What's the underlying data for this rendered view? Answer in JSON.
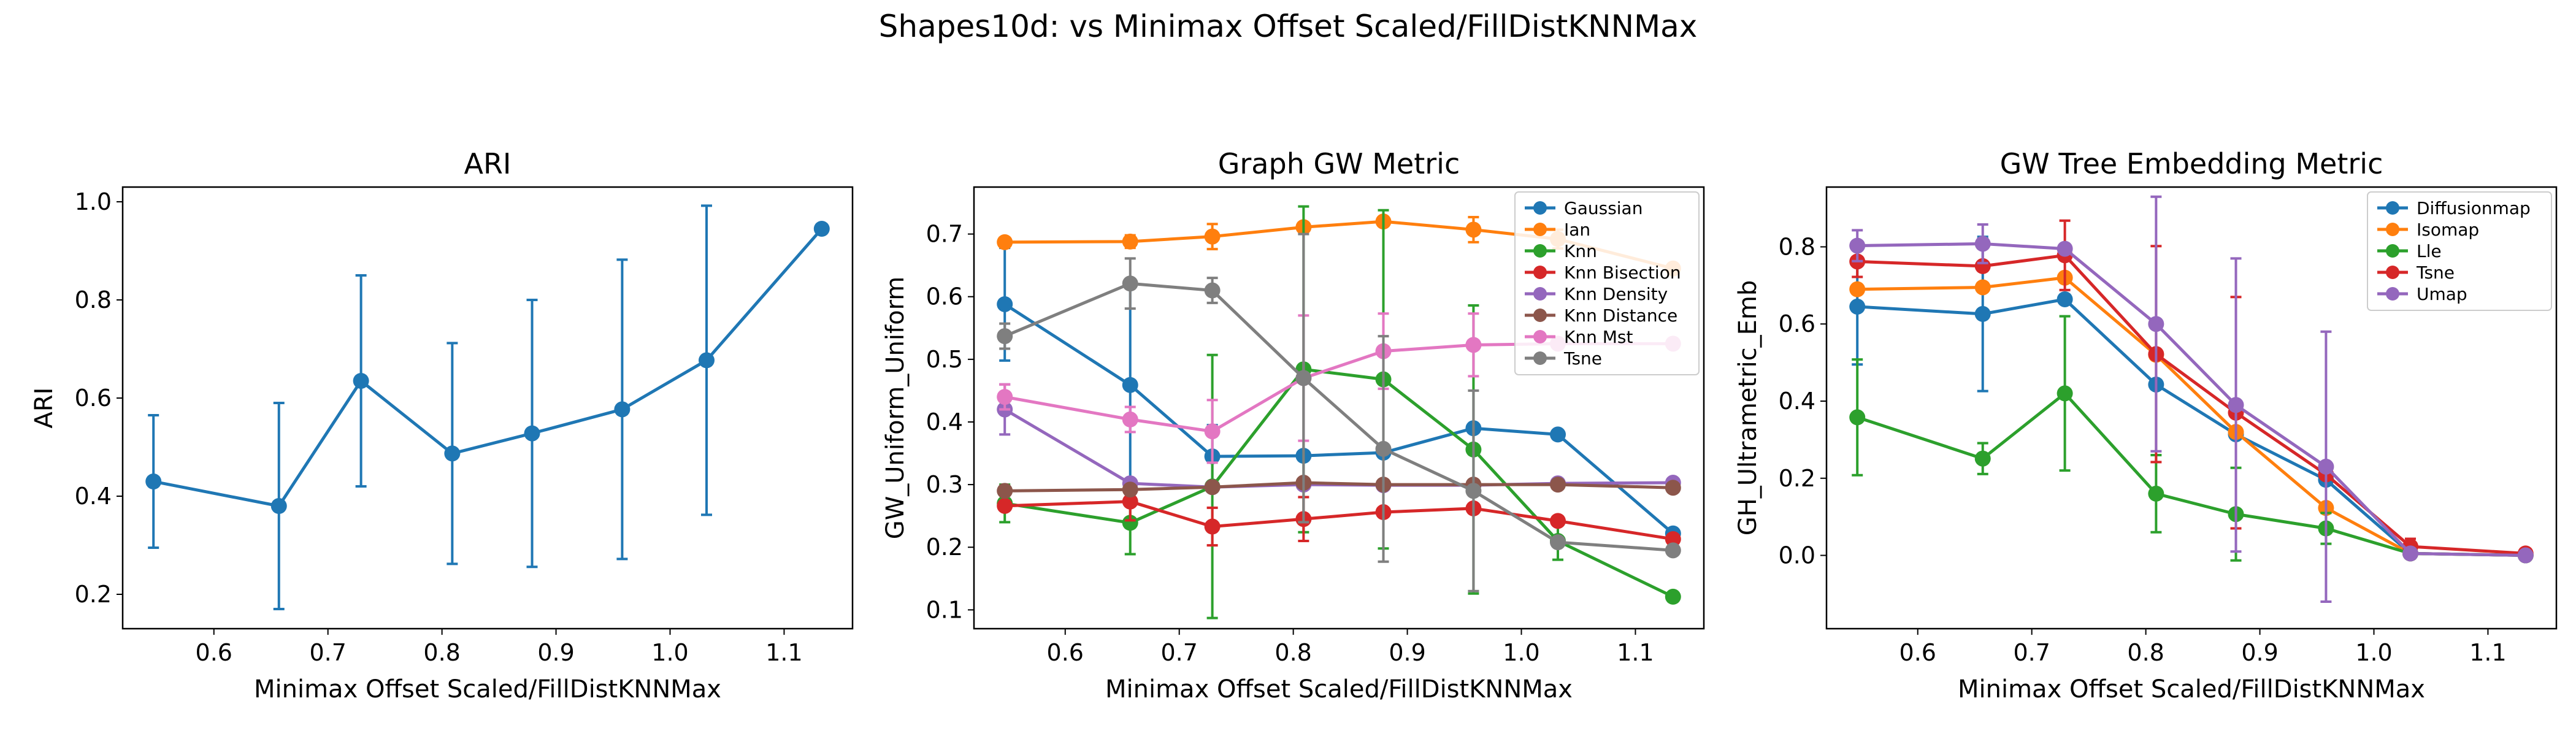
{
  "figure": {
    "title": "Shapes10d: vs Minimax Offset Scaled/FillDistKNNMax"
  },
  "colors": [
    "#1f77b4",
    "#ff7f0e",
    "#2ca02c",
    "#d62728",
    "#9467bd",
    "#8c564b",
    "#e377c2",
    "#7f7f7f"
  ],
  "chart_data": [
    {
      "type": "line",
      "title": "ARI",
      "xlabel": "Minimax Offset Scaled/FillDistKNNMax",
      "ylabel": "ARI",
      "xlim": [
        0.52,
        1.16
      ],
      "ylim": [
        0.13,
        1.03
      ],
      "xticks": [
        0.6,
        0.7,
        0.8,
        0.9,
        1.0,
        1.1
      ],
      "yticks": [
        0.2,
        0.4,
        0.6,
        0.8,
        1.0
      ],
      "x": [
        0.547,
        0.657,
        0.729,
        0.809,
        0.879,
        0.958,
        1.032,
        1.133
      ],
      "legend": null,
      "series": [
        {
          "values": [
            0.43,
            0.38,
            0.635,
            0.487,
            0.528,
            0.577,
            0.677,
            0.945
          ],
          "err": [
            0.135,
            0.21,
            0.215,
            0.225,
            0.272,
            0.305,
            0.315,
            0.0
          ]
        }
      ]
    },
    {
      "type": "line",
      "title": "Graph GW Metric",
      "xlabel": "Minimax Offset Scaled/FillDistKNNMax",
      "ylabel": "GW_Uniform_Uniform",
      "xlim": [
        0.52,
        1.16
      ],
      "ylim": [
        0.07,
        0.775
      ],
      "xticks": [
        0.6,
        0.7,
        0.8,
        0.9,
        1.0,
        1.1
      ],
      "yticks": [
        0.1,
        0.2,
        0.3,
        0.4,
        0.5,
        0.6,
        0.7
      ],
      "x": [
        0.547,
        0.657,
        0.729,
        0.809,
        0.879,
        0.958,
        1.032,
        1.133
      ],
      "legend": "top-right",
      "series": [
        {
          "name": "Gaussian",
          "values": [
            0.588,
            0.459,
            0.345,
            0.346,
            0.351,
            0.39,
            0.38,
            0.222
          ],
          "err": [
            0.09,
            0.16,
            0.05,
            0.0,
            0.0,
            0.0,
            0.0,
            0.0
          ]
        },
        {
          "name": "Ian",
          "values": [
            0.687,
            0.688,
            0.696,
            0.711,
            0.72,
            0.707,
            0.692,
            0.645
          ],
          "err": [
            0.0,
            0.01,
            0.02,
            0.0,
            0.0,
            0.02,
            0.015,
            0.0
          ]
        },
        {
          "name": "Knn",
          "values": [
            0.27,
            0.239,
            0.297,
            0.484,
            0.468,
            0.356,
            0.21,
            0.121
          ],
          "err": [
            0.03,
            0.05,
            0.21,
            0.26,
            0.27,
            0.23,
            0.03,
            0.0
          ]
        },
        {
          "name": "Knn Bisection",
          "values": [
            0.266,
            0.273,
            0.233,
            0.245,
            0.256,
            0.262,
            0.242,
            0.213
          ],
          "err": [
            0.0,
            0.03,
            0.03,
            0.035,
            0.0,
            0.0,
            0.0,
            0.0
          ]
        },
        {
          "name": "Knn Density",
          "values": [
            0.42,
            0.302,
            0.296,
            0.3,
            0.299,
            0.299,
            0.302,
            0.303
          ],
          "err": [
            0.04,
            0.0,
            0.0,
            0.0,
            0.0,
            0.0,
            0.0,
            0.0
          ]
        },
        {
          "name": "Knn Distance",
          "values": [
            0.29,
            0.292,
            0.296,
            0.303,
            0.3,
            0.3,
            0.3,
            0.295
          ],
          "err": [
            0.0,
            0.0,
            0.0,
            0.0,
            0.0,
            0.0,
            0.0,
            0.0
          ]
        },
        {
          "name": "Knn Mst",
          "values": [
            0.44,
            0.404,
            0.385,
            0.47,
            0.513,
            0.523,
            0.525,
            0.525
          ],
          "err": [
            0.02,
            0.02,
            0.05,
            0.1,
            0.06,
            0.05,
            0.0,
            0.0
          ]
        },
        {
          "name": "Tsne",
          "values": [
            0.537,
            0.621,
            0.61,
            0.47,
            0.357,
            0.29,
            0.208,
            0.195
          ],
          "err": [
            0.02,
            0.04,
            0.02,
            0.23,
            0.18,
            0.16,
            0.0,
            0.0
          ]
        }
      ]
    },
    {
      "type": "line",
      "title": "GW Tree Embedding Metric",
      "xlabel": "Minimax Offset Scaled/FillDistKNNMax",
      "ylabel": "GH_Ultrametric_Emb",
      "xlim": [
        0.52,
        1.16
      ],
      "ylim": [
        -0.19,
        0.955
      ],
      "xticks": [
        0.6,
        0.7,
        0.8,
        0.9,
        1.0,
        1.1
      ],
      "yticks": [
        0.0,
        0.2,
        0.4,
        0.6,
        0.8
      ],
      "x": [
        0.547,
        0.657,
        0.729,
        0.809,
        0.879,
        0.958,
        1.032,
        1.133
      ],
      "legend": "top-right",
      "series": [
        {
          "name": "Diffusionmap",
          "values": [
            0.645,
            0.626,
            0.664,
            0.443,
            0.314,
            0.196,
            0.005,
            0.0
          ],
          "err": [
            0.15,
            0.2,
            0.0,
            0.0,
            0.0,
            0.0,
            0.0,
            0.0
          ]
        },
        {
          "name": "Isomap",
          "values": [
            0.69,
            0.695,
            0.72,
            0.52,
            0.32,
            0.123,
            0.005,
            0.0
          ],
          "err": [
            0.0,
            0.0,
            0.0,
            0.0,
            0.0,
            0.0,
            0.0,
            0.0
          ]
        },
        {
          "name": "Lle",
          "values": [
            0.358,
            0.251,
            0.42,
            0.16,
            0.107,
            0.07,
            0.005,
            0.0
          ],
          "err": [
            0.15,
            0.04,
            0.2,
            0.1,
            0.12,
            0.04,
            0.0,
            0.0
          ]
        },
        {
          "name": "Tsne",
          "values": [
            0.762,
            0.75,
            0.778,
            0.522,
            0.37,
            0.21,
            0.023,
            0.005
          ],
          "err": [
            0.04,
            0.0,
            0.09,
            0.28,
            0.3,
            0.0,
            0.02,
            0.0
          ]
        },
        {
          "name": "Umap",
          "values": [
            0.803,
            0.808,
            0.795,
            0.6,
            0.39,
            0.23,
            0.005,
            0.0
          ],
          "err": [
            0.04,
            0.05,
            0.0,
            0.33,
            0.38,
            0.35,
            0.0,
            0.0
          ]
        }
      ]
    }
  ]
}
